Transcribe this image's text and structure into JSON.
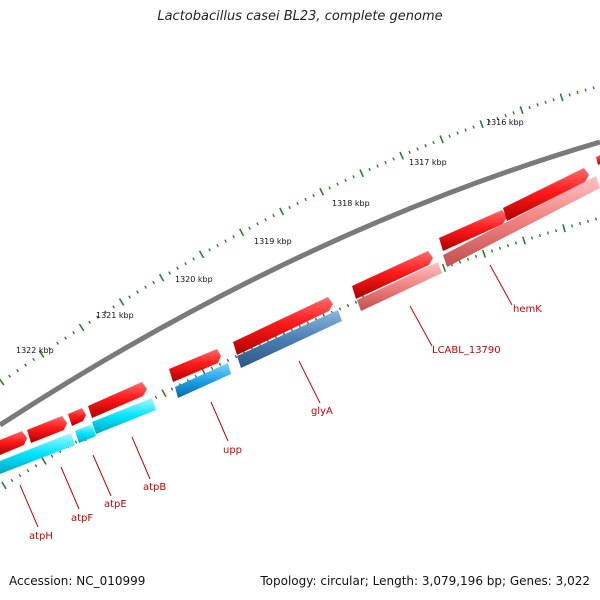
{
  "title": "Lactobacillus casei BL23, complete genome",
  "footer": {
    "accession": "Accession: NC_010999",
    "stats": "Topology: circular; Length: 3,079,196 bp; Genes: 3,022"
  },
  "colors": {
    "backbone": "#7a7a7a",
    "forward_cds": "#ff1a1a",
    "reverse_cds_cyan": "#00e5ff",
    "reverse_cds_blue": "#2196f3",
    "reverse_cds_steel": "#4a7fb5",
    "reverse_cds_pink": "#f08080",
    "tick": "#2e7d32",
    "label": "#cc0000"
  },
  "kbp_labels": [
    "1316 kbp",
    "1317 kbp",
    "1318 kbp",
    "1319 kbp",
    "1320 kbp",
    "1321 kbp",
    "1322 kbp"
  ],
  "gene_labels": [
    "atpH",
    "atpF",
    "atpE",
    "atpB",
    "upp",
    "glyA",
    "LCABL_13790",
    "hemK"
  ]
}
